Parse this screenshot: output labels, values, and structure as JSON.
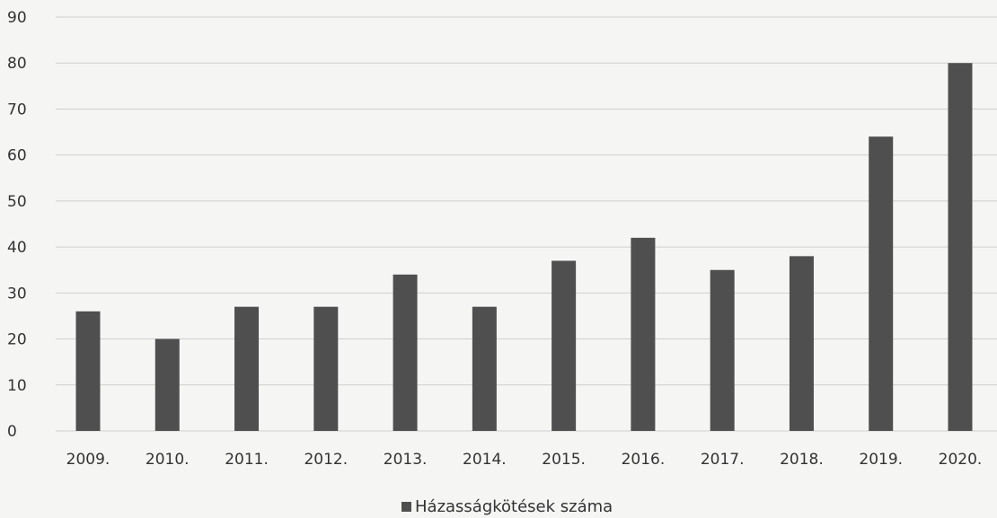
{
  "chart_data": {
    "type": "bar",
    "categories": [
      "2009.",
      "2010.",
      "2011.",
      "2012.",
      "2013.",
      "2014.",
      "2015.",
      "2016.",
      "2017.",
      "2018.",
      "2019.",
      "2020."
    ],
    "series": [
      {
        "name": "Házasságkötések száma",
        "values": [
          26,
          20,
          27,
          27,
          34,
          27,
          37,
          42,
          35,
          38,
          64,
          80
        ]
      }
    ],
    "ylim": [
      0,
      90
    ],
    "yticks": [
      0,
      10,
      20,
      30,
      40,
      50,
      60,
      70,
      80,
      90
    ],
    "grid": true,
    "legend_position": "bottom",
    "colors": {
      "bar": "#4f4f4f",
      "grid": "#cfcfcf",
      "legend_marker": "#4f4f4f"
    }
  }
}
